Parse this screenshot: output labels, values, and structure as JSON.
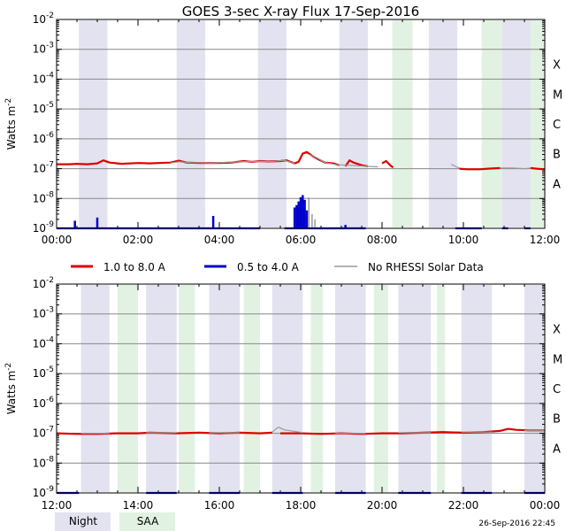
{
  "title": "GOES 3-sec X-ray Flux   17-Sep-2016",
  "timestamp": "26-Sep-2016 22:45",
  "legend_labels": {
    "long": "1.0 to 8.0 A",
    "short": "0.5 to 4.0 A",
    "norhessi": "No RHESSI Solar Data",
    "night": "Night",
    "saa": "SAA"
  },
  "colors": {
    "long": "#dd0000",
    "short": "#0000cc",
    "norhessi": "#999999",
    "night": "#e2e2f0",
    "saa": "#e2f2e2",
    "grid": "#888888"
  },
  "chart_data": [
    {
      "type": "line",
      "ylabel": "Watts m",
      "ylabel_superscript": "-2",
      "y_scale": "log",
      "ylim": [
        1e-09,
        0.01
      ],
      "y_tick_labels": [
        "10",
        "10",
        "10",
        "10",
        "10",
        "10",
        "10",
        "10"
      ],
      "y_tick_exponents": [
        "-9",
        "-8",
        "-7",
        "-6",
        "-5",
        "-4",
        "-3",
        "-2"
      ],
      "flare_class_labels": [
        "A",
        "B",
        "C",
        "M",
        "X"
      ],
      "xlim_hours": [
        0,
        12
      ],
      "x_tick_labels": [
        "00:00",
        "02:00",
        "04:00",
        "06:00",
        "08:00",
        "10:00",
        "12:00"
      ],
      "grid": true,
      "night": [
        [
          0.55,
          1.25
        ],
        [
          2.95,
          3.65
        ],
        [
          4.95,
          5.65
        ],
        [
          6.95,
          7.65
        ],
        [
          9.15,
          9.85
        ],
        [
          10.95,
          11.65
        ]
      ],
      "saa": [
        [
          8.25,
          8.75
        ],
        [
          10.45,
          10.95
        ],
        [
          11.65,
          12.0
        ]
      ],
      "series": [
        {
          "key": "long",
          "name": "1.0 to 8.0 A",
          "segments": [
            [
              [
                0,
                1.4e-07
              ],
              [
                0.3,
                1.4e-07
              ],
              [
                0.5,
                1.45e-07
              ],
              [
                0.75,
                1.4e-07
              ],
              [
                1.0,
                1.5e-07
              ],
              [
                1.15,
                1.9e-07
              ],
              [
                1.3,
                1.6e-07
              ],
              [
                1.6,
                1.45e-07
              ],
              [
                2.0,
                1.55e-07
              ],
              [
                2.3,
                1.5e-07
              ],
              [
                2.5,
                1.55e-07
              ],
              [
                2.8,
                1.6e-07
              ],
              [
                3.0,
                1.85e-07
              ],
              [
                3.2,
                1.6e-07
              ],
              [
                3.5,
                1.55e-07
              ],
              [
                4.0,
                1.55e-07
              ],
              [
                4.3,
                1.6e-07
              ],
              [
                4.6,
                1.8e-07
              ],
              [
                4.8,
                1.7e-07
              ],
              [
                5.0,
                1.8e-07
              ],
              [
                5.2,
                1.75e-07
              ],
              [
                5.5,
                1.8e-07
              ],
              [
                5.65,
                1.9e-07
              ],
              [
                5.85,
                1.5e-07
              ],
              [
                5.95,
                1.7e-07
              ],
              [
                6.05,
                3.2e-07
              ],
              [
                6.15,
                3.6e-07
              ],
              [
                6.3,
                2.6e-07
              ],
              [
                6.45,
                2e-07
              ],
              [
                6.6,
                1.6e-07
              ],
              [
                6.8,
                1.5e-07
              ],
              [
                6.95,
                1.3e-07
              ]
            ],
            [
              [
                7.1,
                1.2e-07
              ],
              [
                7.2,
                1.9e-07
              ],
              [
                7.3,
                1.6e-07
              ],
              [
                7.5,
                1.3e-07
              ],
              [
                7.65,
                1.2e-07
              ]
            ],
            [
              [
                8.0,
                1.5e-07
              ],
              [
                8.1,
                1.8e-07
              ],
              [
                8.2,
                1.3e-07
              ],
              [
                8.27,
                1.1e-07
              ]
            ],
            [
              [
                9.9,
                1e-07
              ],
              [
                10.1,
                9.5e-08
              ],
              [
                10.4,
                9.5e-08
              ],
              [
                10.6,
                1e-07
              ],
              [
                10.9,
                1.05e-07
              ]
            ],
            [
              [
                11.65,
                1.05e-07
              ],
              [
                11.8,
                1e-07
              ],
              [
                12.0,
                9.5e-08
              ]
            ]
          ]
        },
        {
          "key": "short",
          "name": "0.5 to 4.0 A",
          "baseline": 1e-09,
          "spikes": [
            [
              0.45,
              1.8e-09
            ],
            [
              1.0,
              2.3e-09
            ],
            [
              3.85,
              2.6e-09
            ],
            [
              5.85,
              5e-09
            ],
            [
              5.9,
              6e-09
            ],
            [
              5.95,
              8e-09
            ],
            [
              6.0,
              1.1e-08
            ],
            [
              6.05,
              1.3e-08
            ],
            [
              6.1,
              9e-09
            ],
            [
              6.15,
              4e-09
            ],
            [
              7.1,
              1.3e-09
            ]
          ],
          "segments": [
            [
              [
                0,
                1e-09
              ],
              [
                5.0,
                1e-09
              ]
            ],
            [
              [
                5.6,
                1e-09
              ],
              [
                7.0,
                1e-09
              ]
            ],
            [
              [
                7.0,
                1e-09
              ],
              [
                7.6,
                1e-09
              ]
            ],
            [
              [
                9.8,
                1e-09
              ],
              [
                10.45,
                1e-09
              ]
            ],
            [
              [
                10.95,
                1e-09
              ],
              [
                11.1,
                1e-09
              ]
            ],
            [
              [
                11.5,
                1e-09
              ],
              [
                11.65,
                1e-09
              ]
            ]
          ]
        },
        {
          "key": "norhessi",
          "name": "No RHESSI Solar Data",
          "segments": [
            [
              [
                2.8,
                1.55e-07
              ],
              [
                3.0,
                1.7e-07
              ],
              [
                3.3,
                1.6e-07
              ],
              [
                3.8,
                1.55e-07
              ],
              [
                4.3,
                1.65e-07
              ],
              [
                4.8,
                1.75e-07
              ],
              [
                5.3,
                1.75e-07
              ],
              [
                5.6,
                1.9e-07
              ],
              [
                5.85,
                1.5e-07
              ]
            ],
            [
              [
                6.2,
                3e-07
              ],
              [
                6.4,
                2.3e-07
              ],
              [
                6.6,
                1.6e-07
              ],
              [
                6.9,
                1.35e-07
              ],
              [
                7.2,
                1.3e-07
              ],
              [
                7.6,
                1.2e-07
              ],
              [
                7.9,
                1.15e-07
              ]
            ],
            [
              [
                9.7,
                1.4e-07
              ],
              [
                9.8,
                1.2e-07
              ],
              [
                9.9,
                1.05e-07
              ]
            ],
            [
              [
                10.9,
                1.05e-07
              ],
              [
                11.2,
                1.05e-07
              ],
              [
                11.5,
                1e-07
              ],
              [
                11.65,
                1.05e-07
              ]
            ]
          ],
          "spikes": [
            [
              6.2,
              1.1e-08
            ],
            [
              6.28,
              3e-09
            ],
            [
              6.35,
              2e-09
            ]
          ]
        }
      ]
    },
    {
      "type": "line",
      "ylabel": "Watts m",
      "ylabel_superscript": "-2",
      "y_scale": "log",
      "ylim": [
        1e-09,
        0.01
      ],
      "y_tick_labels": [
        "10",
        "10",
        "10",
        "10",
        "10",
        "10",
        "10",
        "10"
      ],
      "y_tick_exponents": [
        "-9",
        "-8",
        "-7",
        "-6",
        "-5",
        "-4",
        "-3",
        "-2"
      ],
      "flare_class_labels": [
        "A",
        "B",
        "C",
        "M",
        "X"
      ],
      "xlim_hours": [
        12,
        24
      ],
      "x_tick_labels": [
        "12:00",
        "14:00",
        "16:00",
        "18:00",
        "20:00",
        "22:00",
        "00:00"
      ],
      "grid": true,
      "night": [
        [
          12.6,
          13.3
        ],
        [
          14.2,
          14.95
        ],
        [
          15.75,
          16.5
        ],
        [
          17.3,
          18.05
        ],
        [
          18.85,
          19.6
        ],
        [
          20.4,
          21.2
        ],
        [
          21.95,
          22.7
        ],
        [
          23.5,
          24.0
        ]
      ],
      "saa": [
        [
          13.5,
          14.0
        ],
        [
          15.0,
          15.4
        ],
        [
          16.6,
          17.0
        ],
        [
          18.25,
          18.55
        ],
        [
          19.8,
          20.15
        ],
        [
          21.35,
          21.55
        ]
      ],
      "series": [
        {
          "key": "long",
          "name": "1.0 to 8.0 A",
          "segments": [
            [
              [
                12,
                1e-07
              ],
              [
                12.5,
                9.5e-08
              ],
              [
                13.0,
                9.5e-08
              ],
              [
                13.5,
                1e-07
              ],
              [
                14.0,
                1e-07
              ],
              [
                14.3,
                1.05e-07
              ],
              [
                14.95,
                1e-07
              ],
              [
                15.5,
                1.05e-07
              ],
              [
                16.0,
                1e-07
              ],
              [
                16.5,
                1.05e-07
              ],
              [
                17.0,
                1e-07
              ],
              [
                17.3,
                1.05e-07
              ]
            ],
            [
              [
                17.5,
                1e-07
              ],
              [
                18.0,
                1e-07
              ],
              [
                18.5,
                9.5e-08
              ],
              [
                19.0,
                1e-07
              ],
              [
                19.5,
                9.5e-08
              ],
              [
                20.0,
                1e-07
              ],
              [
                20.5,
                1e-07
              ],
              [
                21.0,
                1.05e-07
              ],
              [
                21.5,
                1.1e-07
              ],
              [
                22.0,
                1.05e-07
              ],
              [
                22.5,
                1.1e-07
              ],
              [
                22.9,
                1.2e-07
              ],
              [
                23.1,
                1.4e-07
              ],
              [
                23.3,
                1.3e-07
              ],
              [
                23.6,
                1.25e-07
              ],
              [
                24.0,
                1.25e-07
              ]
            ]
          ]
        },
        {
          "key": "short",
          "name": "0.5 to 4.0 A",
          "baseline": 1e-09,
          "spikes": [],
          "segments": [
            [
              [
                12,
                1e-09
              ],
              [
                12.55,
                1e-09
              ]
            ],
            [
              [
                14.2,
                1e-09
              ],
              [
                14.95,
                1e-09
              ]
            ],
            [
              [
                15.75,
                1e-09
              ],
              [
                16.5,
                1e-09
              ]
            ],
            [
              [
                17.3,
                1e-09
              ],
              [
                18.05,
                1e-09
              ]
            ],
            [
              [
                18.85,
                1e-09
              ],
              [
                19.6,
                1e-09
              ]
            ],
            [
              [
                20.4,
                1e-09
              ],
              [
                21.2,
                1e-09
              ]
            ],
            [
              [
                21.95,
                1e-09
              ],
              [
                22.7,
                1e-09
              ]
            ],
            [
              [
                23.5,
                1e-09
              ],
              [
                24.0,
                1e-09
              ]
            ]
          ]
        },
        {
          "key": "norhessi",
          "name": "No RHESSI Solar Data",
          "segments": [
            [
              [
                12.6,
                1e-07
              ],
              [
                13.3,
                1e-07
              ]
            ],
            [
              [
                14.2,
                1.05e-07
              ],
              [
                14.95,
                1.05e-07
              ]
            ],
            [
              [
                15.75,
                1.05e-07
              ],
              [
                16.5,
                1.05e-07
              ]
            ],
            [
              [
                17.3,
                1.1e-07
              ],
              [
                17.45,
                1.6e-07
              ],
              [
                17.6,
                1.3e-07
              ],
              [
                18.05,
                1.05e-07
              ]
            ],
            [
              [
                18.85,
                1e-07
              ],
              [
                19.6,
                1e-07
              ]
            ],
            [
              [
                20.4,
                1.05e-07
              ],
              [
                21.2,
                1.05e-07
              ]
            ],
            [
              [
                21.95,
                1.1e-07
              ],
              [
                22.7,
                1.1e-07
              ]
            ],
            [
              [
                23.5,
                1.25e-07
              ],
              [
                24.0,
                1.25e-07
              ]
            ]
          ],
          "spikes": []
        }
      ]
    }
  ]
}
